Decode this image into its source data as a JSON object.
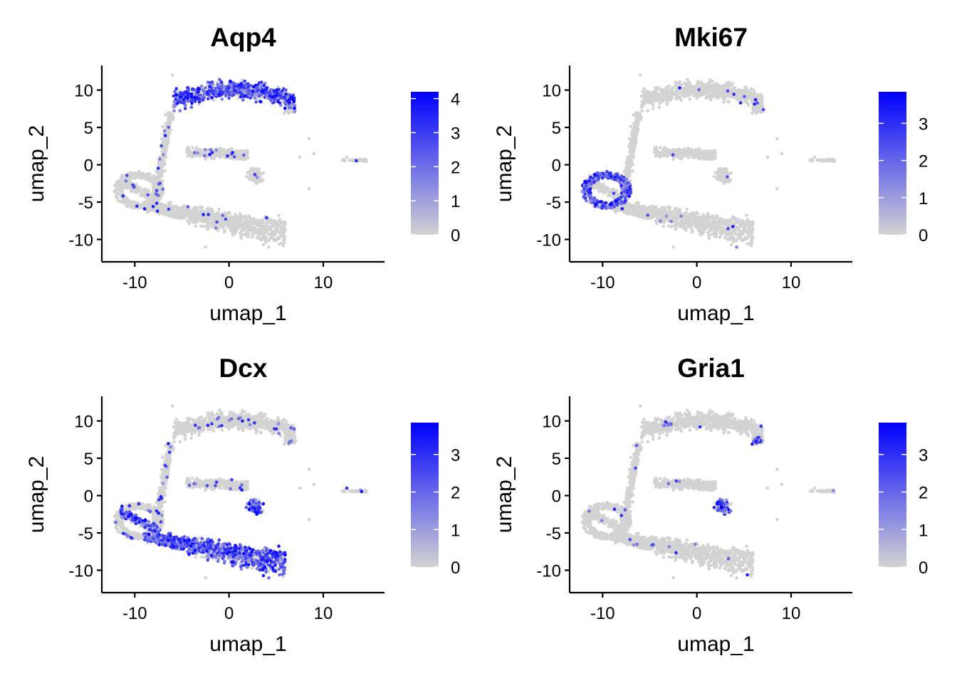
{
  "chart_data": [
    {
      "type": "scatter",
      "title": "Aqp4",
      "xlabel": "umap_1",
      "ylabel": "umap_2",
      "xticks": [
        -10,
        0,
        10
      ],
      "yticks": [
        10,
        5,
        0,
        -5,
        -10
      ],
      "xlim": [
        -13.5,
        16.5
      ],
      "ylim": [
        -13,
        13.3
      ],
      "color_scale": {
        "low": "#d3d3d3",
        "high": "#0000ff",
        "min": 0,
        "max": 4.2,
        "ticks": [
          0,
          1,
          2,
          3,
          4
        ]
      },
      "hotspots": [
        "astrocyte-upper"
      ],
      "hotspot_level": 0.8,
      "sparse_rate": 0.02
    },
    {
      "type": "scatter",
      "title": "Mki67",
      "xlabel": "umap_1",
      "ylabel": "umap_2",
      "xticks": [
        -10,
        0,
        10
      ],
      "yticks": [
        10,
        5,
        0,
        -5,
        -10
      ],
      "xlim": [
        -13.5,
        16.5
      ],
      "ylim": [
        -13,
        13.3
      ],
      "color_scale": {
        "low": "#d3d3d3",
        "high": "#0000ff",
        "min": 0,
        "max": 3.85,
        "ticks": [
          0,
          1,
          2,
          3
        ]
      },
      "hotspots": [
        "cycling-loop"
      ],
      "hotspot_level": 0.75,
      "sparse_rate": 0.01
    },
    {
      "type": "scatter",
      "title": "Dcx",
      "xlabel": "umap_1",
      "ylabel": "umap_2",
      "xticks": [
        -10,
        0,
        10
      ],
      "yticks": [
        10,
        5,
        0,
        -5,
        -10
      ],
      "xlim": [
        -13.5,
        16.5
      ],
      "ylim": [
        -13,
        13.3
      ],
      "color_scale": {
        "low": "#d3d3d3",
        "high": "#0000ff",
        "min": 0,
        "max": 3.85,
        "ticks": [
          0,
          1,
          2,
          3
        ]
      },
      "hotspots": [
        "loop-left",
        "lower-arm",
        "small-cluster"
      ],
      "hotspot_level": 0.7,
      "sparse_rate": 0.04
    },
    {
      "type": "scatter",
      "title": "Gria1",
      "xlabel": "umap_1",
      "ylabel": "umap_2",
      "xticks": [
        -10,
        0,
        10
      ],
      "yticks": [
        10,
        5,
        0,
        -5,
        -10
      ],
      "xlim": [
        -13.5,
        16.5
      ],
      "ylim": [
        -13,
        13.3
      ],
      "color_scale": {
        "low": "#d3d3d3",
        "high": "#0000ff",
        "min": 0,
        "max": 3.85,
        "ticks": [
          0,
          1,
          2,
          3
        ]
      },
      "hotspots": [
        "small-cluster",
        "upper-right-tip",
        "upper-left-blob"
      ],
      "hotspot_level": 0.55,
      "sparse_rate": 0.01
    }
  ]
}
